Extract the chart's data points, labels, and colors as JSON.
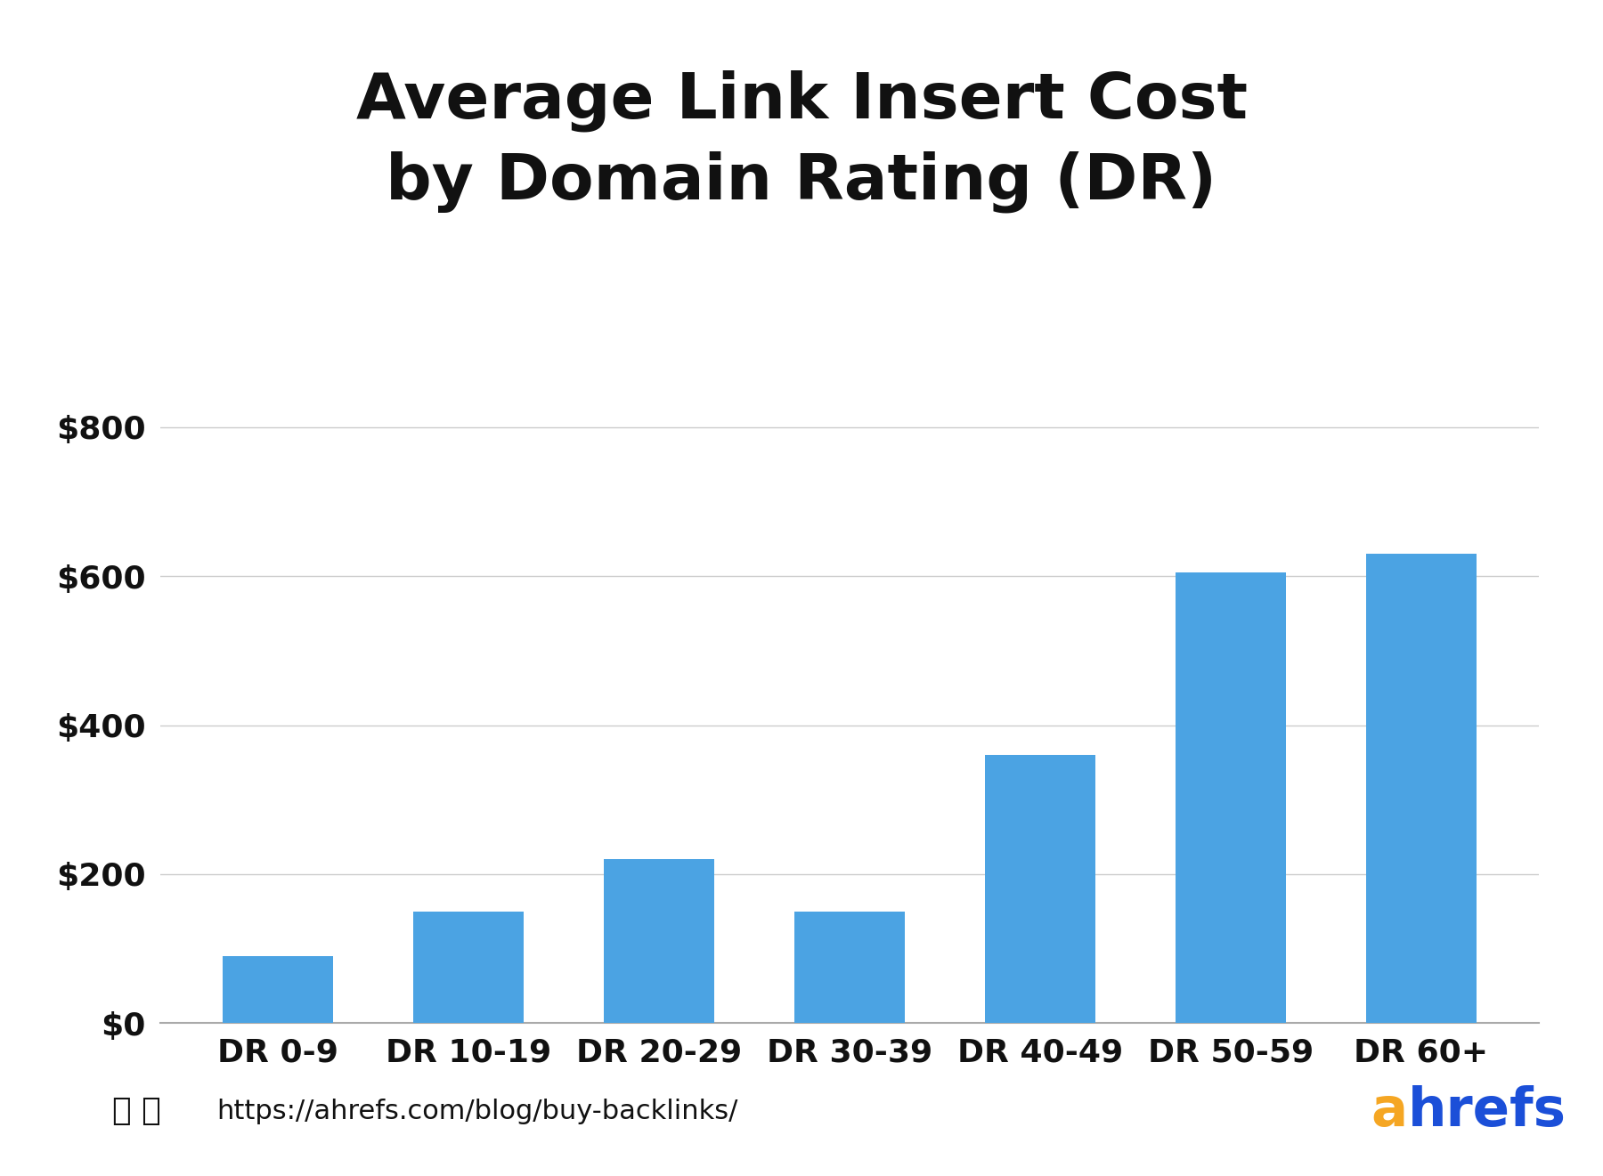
{
  "title": "Average Link Insert Cost\nby Domain Rating (DR)",
  "categories": [
    "DR 0-9",
    "DR 10-19",
    "DR 20-29",
    "DR 30-39",
    "DR 40-49",
    "DR 50-59",
    "DR 60+"
  ],
  "values": [
    90,
    150,
    220,
    150,
    360,
    605,
    630
  ],
  "bar_color": "#4BA3E3",
  "ylim": [
    0,
    900
  ],
  "yticks": [
    0,
    200,
    400,
    600,
    800
  ],
  "ytick_labels": [
    "$0",
    "$200",
    "$400",
    "$600",
    "$800"
  ],
  "background_color": "#ffffff",
  "title_fontsize": 52,
  "tick_fontsize": 26,
  "xtick_fontsize": 26,
  "footer_url": "https://ahrefs.com/blog/buy-backlinks/",
  "ahrefs_a_color": "#F5A623",
  "ahrefs_hrefs_color": "#1B4FD8",
  "grid_color": "#CCCCCC",
  "axis_line_color": "#AAAAAA",
  "footer_fontsize": 22,
  "ahrefs_fontsize": 44
}
